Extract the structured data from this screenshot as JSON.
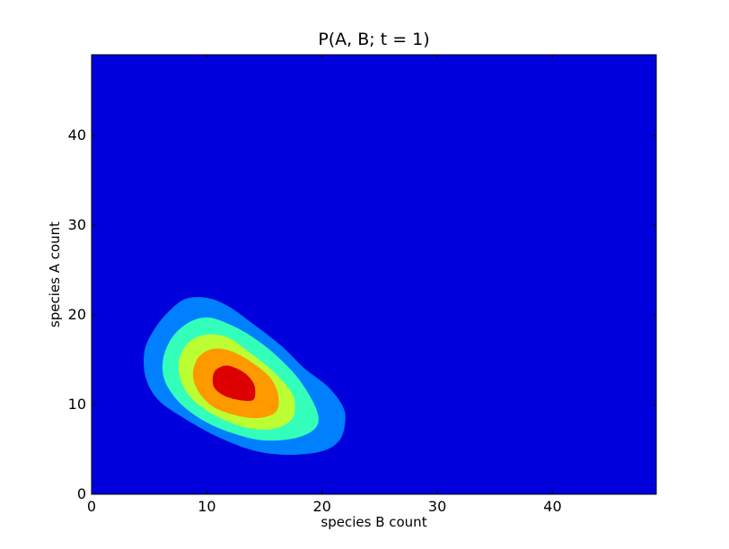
{
  "chart_data": {
    "type": "contour",
    "title": "P(A, B; t = 1)",
    "xlabel": "species B count",
    "ylabel": "species A count",
    "xlim": [
      0,
      49
    ],
    "ylim": [
      0,
      49
    ],
    "xticks": [
      0,
      10,
      20,
      30,
      40
    ],
    "yticks": [
      0,
      10,
      20,
      30,
      40
    ],
    "grid": false,
    "background_color": "#0000dd",
    "levels": [
      {
        "color": "#0080ff",
        "points": [
          [
            22.0,
            8.0
          ],
          [
            21.5,
            6.0
          ],
          [
            20.0,
            4.8
          ],
          [
            17.0,
            4.4
          ],
          [
            14.0,
            4.9
          ],
          [
            10.8,
            6.5
          ],
          [
            8.0,
            8.5
          ],
          [
            5.8,
            10.5
          ],
          [
            4.7,
            13.0
          ],
          [
            4.6,
            16.0
          ],
          [
            5.5,
            18.5
          ],
          [
            6.8,
            20.5
          ],
          [
            8.2,
            21.8
          ],
          [
            10.0,
            21.9
          ],
          [
            11.8,
            21.0
          ],
          [
            14.0,
            19.0
          ],
          [
            16.5,
            16.5
          ],
          [
            18.5,
            14.0
          ],
          [
            20.5,
            12.0
          ],
          [
            21.8,
            9.8
          ]
        ]
      },
      {
        "color": "#33ffbb",
        "points": [
          [
            19.5,
            9.5
          ],
          [
            19.5,
            7.5
          ],
          [
            17.8,
            6.3
          ],
          [
            15.0,
            6.0
          ],
          [
            12.5,
            6.7
          ],
          [
            10.0,
            8.0
          ],
          [
            7.8,
            10.0
          ],
          [
            6.4,
            12.5
          ],
          [
            6.2,
            15.0
          ],
          [
            7.0,
            17.5
          ],
          [
            8.5,
            19.2
          ],
          [
            10.2,
            19.7
          ],
          [
            12.2,
            18.8
          ],
          [
            14.0,
            17.5
          ],
          [
            16.0,
            15.5
          ],
          [
            18.0,
            12.8
          ]
        ]
      },
      {
        "color": "#bbff33",
        "points": [
          [
            17.6,
            10.5
          ],
          [
            17.4,
            8.4
          ],
          [
            15.8,
            7.3
          ],
          [
            13.5,
            7.4
          ],
          [
            11.0,
            8.6
          ],
          [
            8.9,
            10.4
          ],
          [
            7.8,
            12.5
          ],
          [
            7.6,
            15.0
          ],
          [
            8.5,
            17.0
          ],
          [
            10.0,
            17.8
          ],
          [
            11.8,
            17.5
          ],
          [
            13.5,
            16.0
          ],
          [
            15.5,
            14.0
          ],
          [
            17.0,
            12.0
          ]
        ]
      },
      {
        "color": "#ff9900",
        "points": [
          [
            16.2,
            11.0
          ],
          [
            16.0,
            9.2
          ],
          [
            14.5,
            8.5
          ],
          [
            12.5,
            8.8
          ],
          [
            10.5,
            9.8
          ],
          [
            9.2,
            11.6
          ],
          [
            8.8,
            13.5
          ],
          [
            9.3,
            15.3
          ],
          [
            10.5,
            16.2
          ],
          [
            12.0,
            16.0
          ],
          [
            13.8,
            14.8
          ],
          [
            15.5,
            13.0
          ]
        ]
      },
      {
        "color": "#dd0000",
        "points": [
          [
            14.2,
            11.5
          ],
          [
            14.0,
            10.5
          ],
          [
            12.8,
            10.5
          ],
          [
            11.5,
            11.0
          ],
          [
            10.6,
            12.0
          ],
          [
            10.6,
            13.5
          ],
          [
            11.2,
            14.2
          ],
          [
            12.0,
            14.3
          ],
          [
            13.2,
            13.6
          ],
          [
            14.0,
            12.5
          ]
        ]
      }
    ]
  }
}
